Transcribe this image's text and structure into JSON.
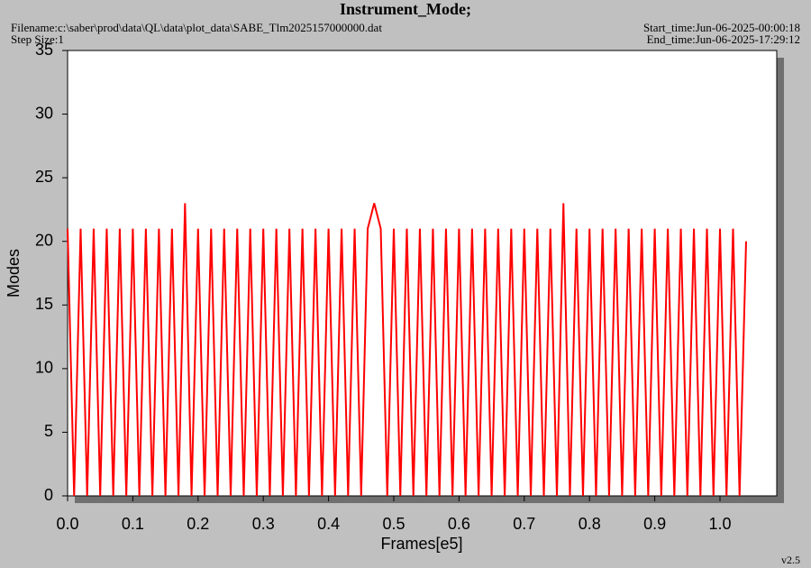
{
  "chart_data": {
    "type": "line",
    "title": "Instrument_Mode;",
    "filename": "Filename:c:\\saber\\prod\\data\\QL\\data\\plot_data\\SABE_Tlm2025157000000.dat",
    "step_size": "Step Size:1",
    "start_time": "Start_time:Jun-06-2025-00:00:18",
    "end_time": "End_time:Jun-06-2025-17:29:12",
    "version": "v2.5",
    "xlabel": "Frames[e5]",
    "ylabel": "Modes",
    "xlim": [
      0,
      1.087
    ],
    "ylim": [
      0,
      35
    ],
    "xticks": [
      {
        "value": 0,
        "label": "0.0"
      },
      0.1,
      0.2,
      0.3,
      0.4,
      0.5,
      0.6,
      0.7,
      0.8,
      0.9,
      {
        "value": 1,
        "label": "1.0"
      }
    ],
    "yticks": [
      0,
      5,
      10,
      15,
      20,
      25,
      30,
      35
    ],
    "x": [
      0,
      0.01,
      0.02,
      0.03,
      0.04,
      0.05,
      0.06,
      0.07,
      0.08,
      0.09,
      0.1,
      0.11,
      0.12,
      0.13,
      0.14,
      0.15,
      0.16,
      0.17,
      0.18,
      0.19,
      0.2,
      0.21,
      0.22,
      0.23,
      0.24,
      0.25,
      0.26,
      0.27,
      0.28,
      0.29,
      0.3,
      0.31,
      0.32,
      0.33,
      0.34,
      0.35,
      0.36,
      0.37,
      0.38,
      0.39,
      0.4,
      0.41,
      0.42,
      0.43,
      0.44,
      0.45,
      0.46,
      0.47,
      0.48,
      0.49,
      0.5,
      0.51,
      0.52,
      0.53,
      0.54,
      0.55,
      0.56,
      0.57,
      0.58,
      0.59,
      0.6,
      0.61,
      0.62,
      0.63,
      0.64,
      0.65,
      0.66,
      0.67,
      0.68,
      0.69,
      0.7,
      0.71,
      0.72,
      0.73,
      0.74,
      0.75,
      0.76,
      0.77,
      0.78,
      0.79,
      0.8,
      0.81,
      0.82,
      0.83,
      0.84,
      0.85,
      0.86,
      0.87,
      0.88,
      0.89,
      0.9,
      0.91,
      0.92,
      0.93,
      0.94,
      0.95,
      0.96,
      0.97,
      0.98,
      0.99,
      1,
      1.01,
      1.02,
      1.03,
      1.04
    ],
    "series": [
      {
        "color": "#ff0000",
        "values": [
          21,
          0,
          21,
          0,
          21,
          0,
          21,
          0,
          21,
          0,
          21,
          0,
          21,
          0,
          21,
          0,
          21,
          0,
          23,
          0,
          21,
          0,
          21,
          0,
          21,
          0,
          21,
          0,
          21,
          0,
          21,
          0,
          21,
          0,
          21,
          0,
          21,
          0,
          21,
          0,
          21,
          0,
          21,
          0,
          21,
          0,
          21,
          23,
          21,
          0,
          21,
          0,
          21,
          0,
          21,
          0,
          21,
          0,
          21,
          0,
          21,
          0,
          21,
          0,
          21,
          0,
          21,
          0,
          21,
          0,
          21,
          0,
          21,
          0,
          21,
          0,
          23,
          0,
          21,
          0,
          21,
          0,
          21,
          0,
          21,
          0,
          21,
          0,
          21,
          0,
          21,
          0,
          21,
          0,
          21,
          0,
          21,
          0,
          21,
          0,
          21,
          0,
          21,
          0,
          20
        ]
      }
    ]
  }
}
